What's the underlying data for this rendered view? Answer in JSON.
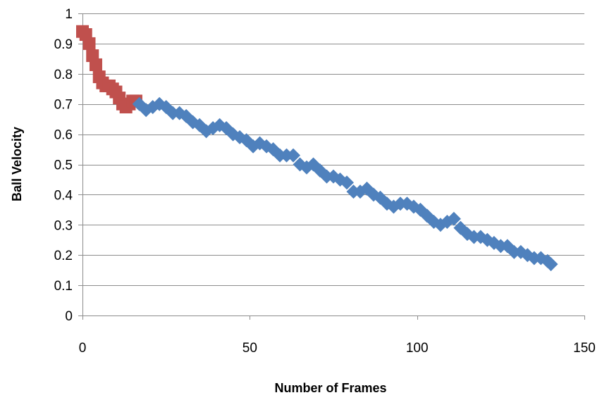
{
  "chart_data": {
    "type": "scatter",
    "title": "",
    "xlabel": "Number  of  Frames",
    "ylabel": "Ball Velocity",
    "xlim": [
      0,
      150
    ],
    "ylim": [
      0,
      1
    ],
    "xticks": [
      0,
      50,
      100,
      150
    ],
    "yticks": [
      0,
      0.1,
      0.2,
      0.3,
      0.4,
      0.5,
      0.6,
      0.7,
      0.8,
      0.9,
      1
    ],
    "grid": "horizontal",
    "legend": "none",
    "series": [
      {
        "marker": "square",
        "color": "#c0504d",
        "x": [
          0,
          1,
          2,
          3,
          4,
          5,
          6,
          7,
          8,
          9,
          10,
          11,
          12,
          13,
          14,
          15,
          16
        ],
        "y": [
          0.94,
          0.93,
          0.9,
          0.86,
          0.83,
          0.79,
          0.77,
          0.76,
          0.76,
          0.75,
          0.74,
          0.72,
          0.7,
          0.69,
          0.7,
          0.71,
          0.71
        ]
      },
      {
        "marker": "diamond",
        "color": "#4f81bd",
        "x": [
          17,
          19,
          21,
          23,
          25,
          27,
          29,
          31,
          33,
          35,
          37,
          39,
          41,
          43,
          45,
          47,
          49,
          51,
          53,
          55,
          57,
          59,
          61,
          63,
          65,
          67,
          69,
          71,
          73,
          75,
          77,
          79,
          81,
          83,
          85,
          87,
          89,
          91,
          93,
          95,
          97,
          99,
          101,
          103,
          105,
          107,
          109,
          111,
          113,
          115,
          117,
          119,
          121,
          123,
          125,
          127,
          129,
          131,
          133,
          135,
          137,
          139,
          140
        ],
        "y": [
          0.7,
          0.68,
          0.69,
          0.7,
          0.69,
          0.67,
          0.67,
          0.66,
          0.64,
          0.63,
          0.61,
          0.62,
          0.63,
          0.62,
          0.6,
          0.59,
          0.58,
          0.56,
          0.57,
          0.56,
          0.55,
          0.53,
          0.53,
          0.53,
          0.5,
          0.49,
          0.5,
          0.48,
          0.46,
          0.46,
          0.45,
          0.44,
          0.41,
          0.41,
          0.42,
          0.4,
          0.39,
          0.37,
          0.36,
          0.37,
          0.37,
          0.36,
          0.35,
          0.33,
          0.31,
          0.3,
          0.31,
          0.32,
          0.29,
          0.27,
          0.26,
          0.26,
          0.25,
          0.24,
          0.23,
          0.23,
          0.21,
          0.21,
          0.2,
          0.19,
          0.19,
          0.18,
          0.17
        ]
      }
    ]
  }
}
